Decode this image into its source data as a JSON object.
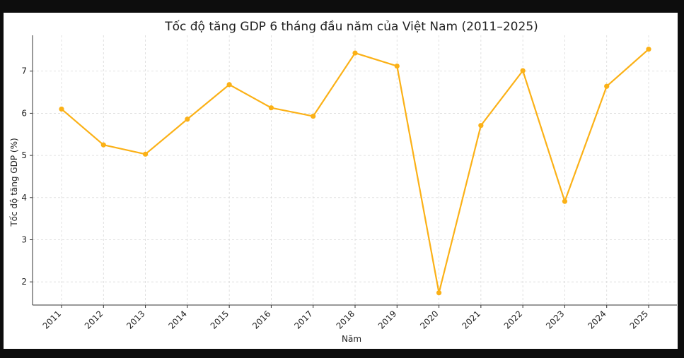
{
  "chart_data": {
    "type": "line",
    "title": "Tốc độ tăng GDP 6 tháng đầu năm của Việt Nam (2011–2025)",
    "xlabel": "Năm",
    "ylabel": "Tốc độ tăng GDP (%)",
    "categories": [
      "2011",
      "2012",
      "2013",
      "2014",
      "2015",
      "2016",
      "2017",
      "2018",
      "2019",
      "2020",
      "2021",
      "2022",
      "2023",
      "2024",
      "2025"
    ],
    "series": [
      {
        "values": [
          6.1,
          5.25,
          5.03,
          5.86,
          6.68,
          6.13,
          5.93,
          7.43,
          7.12,
          1.74,
          5.71,
          7.01,
          3.91,
          6.64,
          7.52
        ]
      }
    ],
    "yticks": [
      2,
      3,
      4,
      5,
      6,
      7
    ],
    "ylim": [
      1.45,
      7.85
    ],
    "grid": true,
    "line_color": "#FBB117"
  }
}
